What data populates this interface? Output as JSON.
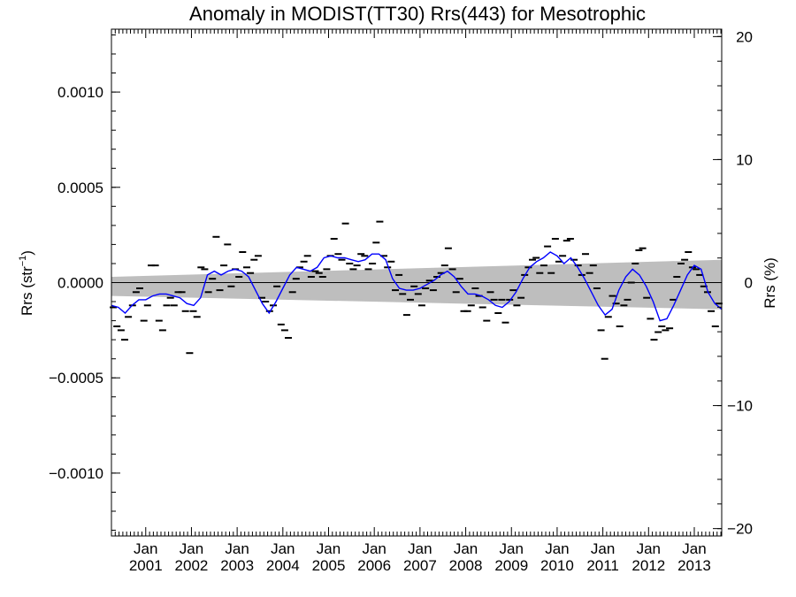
{
  "chart_data": {
    "type": "scatter",
    "title": "Anomaly in MODIST(TT30) Rrs(443) for Mesotrophic",
    "ylabel_left_main": "Rrs (str",
    "ylabel_left_sup": "−1",
    "ylabel_left_tail": ")",
    "ylabel_right": "Rrs (%)",
    "ylim_left": [
      -0.00133,
      0.00133
    ],
    "ylim_right": [
      -20.6,
      20.6
    ],
    "xlim": [
      2000.25,
      2013.6
    ],
    "yticks_left": [
      {
        "v": 0.001,
        "label": "0.0010"
      },
      {
        "v": 0.0005,
        "label": "0.0005"
      },
      {
        "v": 0.0,
        "label": "0.0000"
      },
      {
        "v": -0.0005,
        "label": "−0.0005"
      },
      {
        "v": -0.001,
        "label": "−0.0010"
      }
    ],
    "yticks_right": [
      {
        "v": 20,
        "label": "20"
      },
      {
        "v": 10,
        "label": "10"
      },
      {
        "v": 0,
        "label": "0"
      },
      {
        "v": -10,
        "label": "−10"
      },
      {
        "v": -20,
        "label": "−20"
      }
    ],
    "xticks": [
      {
        "v": 2001.0,
        "month": "Jan",
        "year": "2001"
      },
      {
        "v": 2002.0,
        "month": "Jan",
        "year": "2002"
      },
      {
        "v": 2003.0,
        "month": "Jan",
        "year": "2003"
      },
      {
        "v": 2004.0,
        "month": "Jan",
        "year": "2004"
      },
      {
        "v": 2005.0,
        "month": "Jan",
        "year": "2005"
      },
      {
        "v": 2006.0,
        "month": "Jan",
        "year": "2006"
      },
      {
        "v": 2007.0,
        "month": "Jan",
        "year": "2007"
      },
      {
        "v": 2008.0,
        "month": "Jan",
        "year": "2008"
      },
      {
        "v": 2009.0,
        "month": "Jan",
        "year": "2009"
      },
      {
        "v": 2010.0,
        "month": "Jan",
        "year": "2010"
      },
      {
        "v": 2011.0,
        "month": "Jan",
        "year": "2011"
      },
      {
        "v": 2012.0,
        "month": "Jan",
        "year": "2012"
      },
      {
        "v": 2013.0,
        "month": "Jan",
        "year": "2013"
      }
    ],
    "confidence_band": {
      "x": [
        2000.25,
        2013.6
      ],
      "upper": [
        3e-05,
        0.00012
      ],
      "lower": [
        -7e-05,
        -0.00014
      ],
      "color": "#bebebe"
    },
    "monthly_anomalies": {
      "color": "#000000",
      "points": [
        [
          2000.29,
          -0.00013
        ],
        [
          2000.37,
          -0.00023
        ],
        [
          2000.46,
          -0.00025
        ],
        [
          2000.54,
          -0.0003
        ],
        [
          2000.62,
          -0.00018
        ],
        [
          2000.71,
          -0.00012
        ],
        [
          2000.79,
          -5e-05
        ],
        [
          2000.87,
          -3e-05
        ],
        [
          2000.96,
          -0.0002
        ],
        [
          2001.04,
          -0.00012
        ],
        [
          2001.12,
          9e-05
        ],
        [
          2001.21,
          9e-05
        ],
        [
          2001.29,
          -0.0002
        ],
        [
          2001.37,
          -0.00025
        ],
        [
          2001.46,
          -0.00012
        ],
        [
          2001.54,
          -8e-05
        ],
        [
          2001.62,
          -0.00012
        ],
        [
          2001.71,
          -5e-05
        ],
        [
          2001.79,
          -5e-05
        ],
        [
          2001.87,
          -0.00015
        ],
        [
          2001.96,
          -0.00037
        ],
        [
          2002.04,
          -0.00015
        ],
        [
          2002.12,
          -0.00018
        ],
        [
          2002.21,
          8e-05
        ],
        [
          2002.29,
          7e-05
        ],
        [
          2002.37,
          -5e-05
        ],
        [
          2002.46,
          2e-05
        ],
        [
          2002.54,
          0.00024
        ],
        [
          2002.62,
          -4e-05
        ],
        [
          2002.71,
          9e-05
        ],
        [
          2002.79,
          0.0002
        ],
        [
          2002.87,
          -2e-05
        ],
        [
          2002.96,
          7e-05
        ],
        [
          2003.04,
          3e-05
        ],
        [
          2003.12,
          0.00016
        ],
        [
          2003.21,
          8e-05
        ],
        [
          2003.29,
          5e-05
        ],
        [
          2003.37,
          0.00012
        ],
        [
          2003.46,
          0.00014
        ],
        [
          2003.54,
          -8e-05
        ],
        [
          2003.62,
          -0.0001
        ],
        [
          2003.71,
          -0.00015
        ],
        [
          2003.79,
          -0.00012
        ],
        [
          2003.87,
          -2e-05
        ],
        [
          2003.96,
          -0.00022
        ],
        [
          2004.04,
          -0.00025
        ],
        [
          2004.12,
          -0.00029
        ],
        [
          2004.21,
          -5e-05
        ],
        [
          2004.29,
          2e-05
        ],
        [
          2004.37,
          8e-05
        ],
        [
          2004.46,
          0.00011
        ],
        [
          2004.54,
          0.00014
        ],
        [
          2004.62,
          3e-05
        ],
        [
          2004.71,
          6e-05
        ],
        [
          2004.79,
          5e-05
        ],
        [
          2004.87,
          3e-05
        ],
        [
          2004.96,
          7e-05
        ],
        [
          2005.04,
          0.00014
        ],
        [
          2005.12,
          0.00023
        ],
        [
          2005.21,
          0.00015
        ],
        [
          2005.29,
          0.00012
        ],
        [
          2005.37,
          0.00031
        ],
        [
          2005.46,
          0.0001
        ],
        [
          2005.54,
          7e-05
        ],
        [
          2005.62,
          9e-05
        ],
        [
          2005.71,
          0.00015
        ],
        [
          2005.79,
          0.00014
        ],
        [
          2005.87,
          7e-05
        ],
        [
          2005.96,
          0.0001
        ],
        [
          2006.04,
          0.00021
        ],
        [
          2006.12,
          0.00032
        ],
        [
          2006.21,
          0.00014
        ],
        [
          2006.29,
          8e-05
        ],
        [
          2006.37,
          0.00011
        ],
        [
          2006.46,
          -4e-05
        ],
        [
          2006.54,
          4e-05
        ],
        [
          2006.62,
          -6e-05
        ],
        [
          2006.71,
          -0.00017
        ],
        [
          2006.79,
          -9e-05
        ],
        [
          2006.87,
          -2e-05
        ],
        [
          2006.96,
          -6e-05
        ],
        [
          2007.04,
          -0.00012
        ],
        [
          2007.12,
          -3e-05
        ],
        [
          2007.21,
          1e-05
        ],
        [
          2007.29,
          -4e-05
        ],
        [
          2007.37,
          3e-05
        ],
        [
          2007.46,
          5e-05
        ],
        [
          2007.54,
          9e-05
        ],
        [
          2007.62,
          0.00018
        ],
        [
          2007.71,
          7e-05
        ],
        [
          2007.79,
          -5e-05
        ],
        [
          2007.87,
          2e-05
        ],
        [
          2007.96,
          -0.00015
        ],
        [
          2008.04,
          -0.00015
        ],
        [
          2008.12,
          -0.00012
        ],
        [
          2008.21,
          -3e-05
        ],
        [
          2008.29,
          -7e-05
        ],
        [
          2008.37,
          -0.00013
        ],
        [
          2008.46,
          -0.0002
        ],
        [
          2008.54,
          -5e-05
        ],
        [
          2008.62,
          -9e-05
        ],
        [
          2008.71,
          -0.00016
        ],
        [
          2008.79,
          -9e-05
        ],
        [
          2008.87,
          -0.00021
        ],
        [
          2008.96,
          -9e-05
        ],
        [
          2009.04,
          -4e-05
        ],
        [
          2009.12,
          -0.00012
        ],
        [
          2009.21,
          -8e-05
        ],
        [
          2009.29,
          4e-05
        ],
        [
          2009.37,
          8e-05
        ],
        [
          2009.46,
          0.00012
        ],
        [
          2009.54,
          0.00013
        ],
        [
          2009.62,
          5e-05
        ],
        [
          2009.71,
          9e-05
        ],
        [
          2009.79,
          0.00019
        ],
        [
          2009.87,
          5e-05
        ],
        [
          2009.96,
          0.00023
        ],
        [
          2010.04,
          0.00011
        ],
        [
          2010.12,
          0.00014
        ],
        [
          2010.21,
          0.00022
        ],
        [
          2010.29,
          0.00023
        ],
        [
          2010.37,
          0.00012
        ],
        [
          2010.46,
          9e-05
        ],
        [
          2010.54,
          4e-05
        ],
        [
          2010.62,
          0.00015
        ],
        [
          2010.71,
          5e-05
        ],
        [
          2010.79,
          9e-05
        ],
        [
          2010.87,
          -3e-05
        ],
        [
          2010.96,
          -0.00025
        ],
        [
          2011.04,
          -0.0004
        ],
        [
          2011.12,
          -0.00018
        ],
        [
          2011.21,
          -7e-05
        ],
        [
          2011.29,
          -0.00011
        ],
        [
          2011.37,
          -0.00023
        ],
        [
          2011.46,
          -0.00012
        ],
        [
          2011.54,
          -9e-05
        ],
        [
          2011.62,
          0.0
        ],
        [
          2011.71,
          0.0001
        ],
        [
          2011.79,
          0.00017
        ],
        [
          2011.87,
          0.00018
        ],
        [
          2011.96,
          -8e-05
        ],
        [
          2012.04,
          -0.00019
        ],
        [
          2012.12,
          -0.0003
        ],
        [
          2012.21,
          -0.00026
        ],
        [
          2012.29,
          -0.00023
        ],
        [
          2012.37,
          -0.00025
        ],
        [
          2012.46,
          -0.00024
        ],
        [
          2012.54,
          -9e-05
        ],
        [
          2012.62,
          3e-05
        ],
        [
          2012.71,
          0.0001
        ],
        [
          2012.79,
          0.00012
        ],
        [
          2012.87,
          0.00016
        ],
        [
          2012.96,
          8e-05
        ],
        [
          2013.04,
          7e-05
        ],
        [
          2013.12,
          4e-05
        ],
        [
          2013.21,
          -2e-05
        ],
        [
          2013.29,
          -5e-05
        ],
        [
          2013.37,
          -0.00015
        ],
        [
          2013.46,
          -0.00023
        ],
        [
          2013.54,
          -0.00011
        ]
      ]
    },
    "running_mean": {
      "color": "#0000ff",
      "x": [
        2000.25,
        2000.4,
        2000.55,
        2000.7,
        2000.85,
        2001.0,
        2001.15,
        2001.3,
        2001.45,
        2001.6,
        2001.75,
        2001.9,
        2002.05,
        2002.2,
        2002.35,
        2002.5,
        2002.65,
        2002.8,
        2002.95,
        2003.1,
        2003.25,
        2003.4,
        2003.55,
        2003.7,
        2003.85,
        2004.0,
        2004.15,
        2004.3,
        2004.45,
        2004.6,
        2004.75,
        2004.9,
        2005.05,
        2005.2,
        2005.35,
        2005.5,
        2005.65,
        2005.8,
        2005.95,
        2006.1,
        2006.25,
        2006.4,
        2006.55,
        2006.7,
        2006.85,
        2007.0,
        2007.15,
        2007.3,
        2007.45,
        2007.6,
        2007.75,
        2007.9,
        2008.05,
        2008.2,
        2008.35,
        2008.5,
        2008.65,
        2008.8,
        2008.95,
        2009.1,
        2009.25,
        2009.4,
        2009.55,
        2009.7,
        2009.85,
        2010.0,
        2010.15,
        2010.3,
        2010.45,
        2010.6,
        2010.75,
        2010.9,
        2011.05,
        2011.2,
        2011.35,
        2011.5,
        2011.65,
        2011.8,
        2011.95,
        2012.1,
        2012.25,
        2012.4,
        2012.55,
        2012.7,
        2012.85,
        2013.0,
        2013.15,
        2013.3,
        2013.45,
        2013.6
      ],
      "y": [
        -0.00012,
        -0.00013,
        -0.00016,
        -0.00012,
        -9e-05,
        -9e-05,
        -7e-05,
        -6e-05,
        -6e-05,
        -7e-05,
        -8e-05,
        -0.00011,
        -0.00012,
        -8e-05,
        4e-05,
        6e-05,
        4e-05,
        6e-05,
        7e-05,
        6e-05,
        3e-05,
        -4e-05,
        -0.00011,
        -0.00016,
        -0.0001,
        -3e-05,
        4e-05,
        8e-05,
        7e-05,
        6e-05,
        8e-05,
        0.00013,
        0.00014,
        0.00013,
        0.00013,
        0.00012,
        0.00011,
        0.00012,
        0.00015,
        0.00015,
        0.00012,
        2e-05,
        -3e-05,
        -4e-05,
        -4e-05,
        -3e-05,
        -1e-05,
        1e-05,
        4e-05,
        6e-05,
        3e-05,
        -2e-05,
        -6e-05,
        -6e-05,
        -7e-05,
        -9e-05,
        -0.00012,
        -0.00013,
        -0.0001,
        -5e-05,
        2e-05,
        8e-05,
        0.00011,
        0.00013,
        0.00016,
        0.00014,
        0.0001,
        0.00013,
        8e-05,
        2e-05,
        -5e-05,
        -0.00012,
        -0.00017,
        -0.00014,
        -4e-05,
        3e-05,
        7e-05,
        4e-05,
        -2e-05,
        -0.0001,
        -0.0002,
        -0.00019,
        -0.00012,
        -4e-05,
        4e-05,
        9e-05,
        7e-05,
        -5e-05,
        -0.00011,
        -0.00014
      ]
    }
  }
}
